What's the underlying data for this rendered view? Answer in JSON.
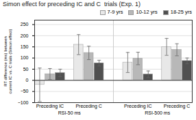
{
  "chart_data": {
    "type": "bar",
    "title": "Simon effect for preceding IC and C  trials (Exp. 1)",
    "ylabel": "RT difference (ms) between\ncurrent IC vs. C trials (Simon effect)",
    "categories": [
      "Preceding IC",
      "Preceding C",
      "Preceding IC",
      "Preceding C"
    ],
    "category_groups": [
      "RSI-50 ms",
      "RSI-50 ms",
      "RSI-500 ms",
      "RSI-500 ms"
    ],
    "series": [
      {
        "name": "7-9 yrs",
        "color": "#e8e8e8",
        "values": [
          -20,
          160,
          80,
          150
        ],
        "errors": [
          75,
          45,
          45,
          38
        ]
      },
      {
        "name": "10-12 yrs",
        "color": "#b8b8b8",
        "values": [
          28,
          123,
          98,
          137
        ],
        "errors": [
          25,
          30,
          28,
          27
        ]
      },
      {
        "name": "18-25 yrs",
        "color": "#505050",
        "values": [
          33,
          77,
          27,
          87
        ],
        "errors": [
          17,
          13,
          15,
          13
        ]
      }
    ],
    "ylim": [
      -100,
      270
    ],
    "yticks": [
      -100,
      -50,
      0,
      50,
      100,
      150,
      200,
      250
    ],
    "grid": true,
    "legend": "upper right"
  }
}
